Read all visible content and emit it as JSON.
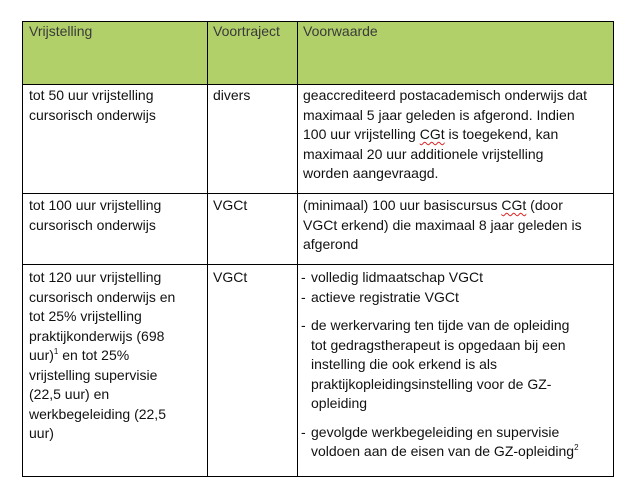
{
  "header": {
    "col1": "Vrijstelling",
    "col2": "Voortraject",
    "col3": "Voorwaarde"
  },
  "colors": {
    "header_bg": "#b2d06a",
    "spellcheck": "#d22222"
  },
  "rows": [
    {
      "vrijstelling": [
        "tot 50 uur vrijstelling",
        "cursorisch onderwijs"
      ],
      "voortraject": "divers",
      "voorwaarde": {
        "l1": "geaccrediteerd postacademisch onderwijs dat",
        "l2": "maximaal 5 jaar geleden is afgerond. Indien",
        "l3a": "100 uur vrijstelling ",
        "l3b": "CGt",
        "l3c": " is toegekend, kan",
        "l4": "maximaal 20 uur additionele vrijstelling",
        "l5": "worden aangevraagd."
      }
    },
    {
      "vrijstelling": [
        "tot 100 uur vrijstelling",
        "cursorisch onderwijs"
      ],
      "voortraject": "VGCt",
      "voorwaarde": {
        "l1a": "(minimaal) 100 uur basiscursus ",
        "l1b": "CGt",
        "l1c": " (door",
        "l2": "VGCt erkend) die maximaal 8 jaar geleden is",
        "l3": "afgerond"
      }
    },
    {
      "vrijstelling": [
        "tot 120 uur vrijstelling",
        "cursorisch onderwijs en",
        "tot 25% vrijstelling",
        "praktijkonderwijs (698",
        "uur)",
        "1",
        " en tot 25%",
        "vrijstelling supervisie",
        "(22,5 uur) en",
        "werkbegeleiding (22,5",
        "uur)"
      ],
      "voortraject": "VGCt",
      "voorwaarde": {
        "dash": "-",
        "b1": "volledig lidmaatschap VGCt",
        "b2": "actieve registratie VGCt",
        "b3": [
          "de werkervaring ten tijde van de opleiding",
          "tot gedragstherapeut is opgedaan bij een",
          "instelling die ook erkend is als",
          "praktijkopleidingsinstelling voor de GZ-",
          "opleiding"
        ],
        "b4": [
          "gevolgde werkbegeleiding en supervisie",
          "voldoen aan de eisen van de GZ-opleiding",
          "2"
        ]
      }
    }
  ]
}
